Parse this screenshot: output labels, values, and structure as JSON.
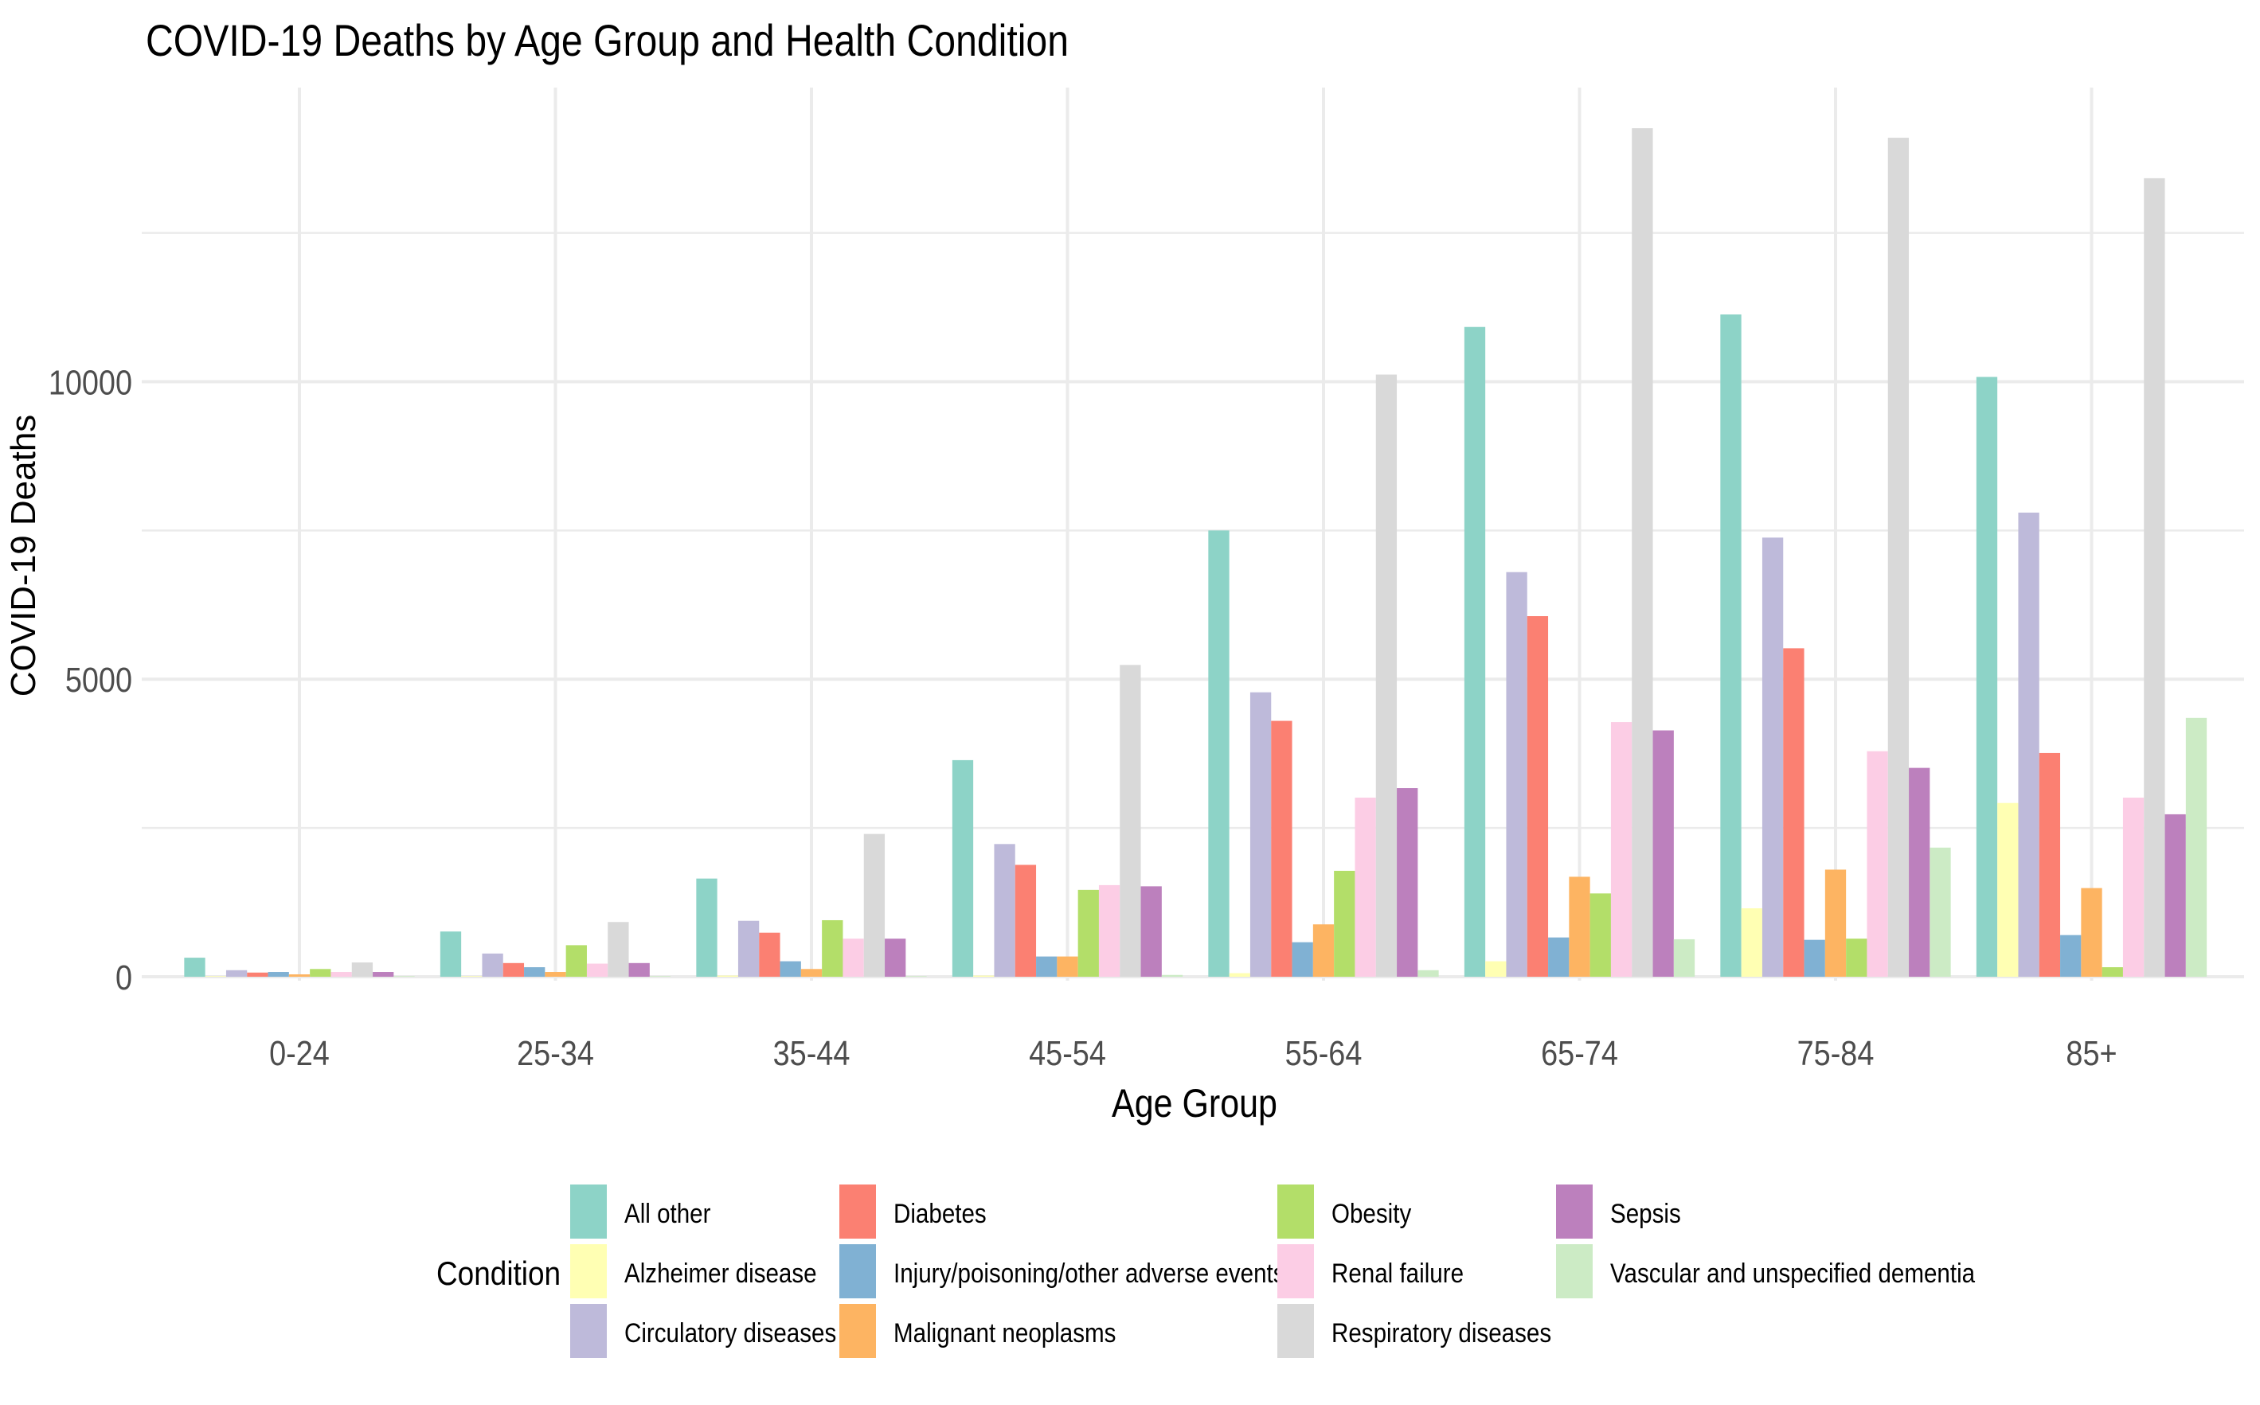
{
  "chart_data": {
    "type": "bar",
    "title": "COVID-19 Deaths by Age Group and Health Condition",
    "xlabel": "Age Group",
    "ylabel": "COVID-19 Deaths",
    "ylim": [
      0,
      14800
    ],
    "yticks": [
      0,
      5000,
      10000
    ],
    "grid": true,
    "legend": {
      "title": "Condition",
      "position": "bottom"
    },
    "categories": [
      "0-24",
      "25-34",
      "35-44",
      "45-54",
      "55-64",
      "65-74",
      "75-84",
      "85+"
    ],
    "series": [
      {
        "name": "All other",
        "color": "#8dd3c7",
        "values": [
          320,
          760,
          1650,
          3640,
          7500,
          10920,
          11130,
          10080
        ]
      },
      {
        "name": "Alzheimer disease",
        "color": "#ffffb3",
        "values": [
          10,
          10,
          20,
          20,
          60,
          260,
          1150,
          2920
        ]
      },
      {
        "name": "Circulatory diseases",
        "color": "#bebada",
        "values": [
          110,
          390,
          940,
          2230,
          4780,
          6800,
          7380,
          7800
        ]
      },
      {
        "name": "Diabetes",
        "color": "#fb8072",
        "values": [
          70,
          230,
          740,
          1880,
          4300,
          6060,
          5520,
          3760
        ]
      },
      {
        "name": "Injury/poisoning/other adverse events",
        "color": "#80b1d3",
        "values": [
          80,
          160,
          260,
          340,
          580,
          660,
          620,
          700
        ]
      },
      {
        "name": "Malignant neoplasms",
        "color": "#fdb462",
        "values": [
          40,
          80,
          130,
          340,
          880,
          1680,
          1800,
          1490
        ]
      },
      {
        "name": "Obesity",
        "color": "#b3de69",
        "values": [
          130,
          530,
          950,
          1460,
          1780,
          1400,
          640,
          160
        ]
      },
      {
        "name": "Renal failure",
        "color": "#fccde5",
        "values": [
          80,
          220,
          640,
          1540,
          3010,
          4280,
          3790,
          3010
        ]
      },
      {
        "name": "Respiratory diseases",
        "color": "#d9d9d9",
        "values": [
          240,
          920,
          2400,
          5240,
          10120,
          14260,
          14100,
          13420
        ]
      },
      {
        "name": "Sepsis",
        "color": "#bc80bd",
        "values": [
          80,
          230,
          640,
          1520,
          3170,
          4140,
          3510,
          2730
        ]
      },
      {
        "name": "Vascular and unspecified dementia",
        "color": "#ccebc5",
        "values": [
          10,
          10,
          10,
          30,
          110,
          630,
          2170,
          4350
        ]
      }
    ]
  }
}
